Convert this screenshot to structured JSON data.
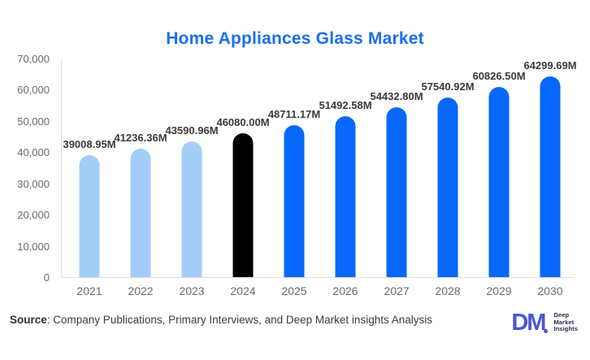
{
  "title": "Home Appliances Glass Market",
  "chart_data": {
    "type": "bar",
    "title": "Home Appliances Glass Market",
    "categories": [
      "2021",
      "2022",
      "2023",
      "2024",
      "2025",
      "2026",
      "2027",
      "2028",
      "2029",
      "2030"
    ],
    "values": [
      39008.95,
      41236.36,
      43590.96,
      46080.0,
      48711.17,
      51492.58,
      54432.8,
      57540.92,
      60826.5,
      64299.69
    ],
    "value_labels": [
      "39008.95M",
      "41236.36M",
      "43590.96M",
      "46080.00M",
      "48711.17M",
      "51492.58M",
      "54432.80M",
      "57540.92M",
      "60826.50M",
      "64299.69M"
    ],
    "bar_colors": [
      "#A4CDF8",
      "#A4CDF8",
      "#A4CDF8",
      "#000000",
      "#0768FB",
      "#0768FB",
      "#0768FB",
      "#0768FB",
      "#0768FB",
      "#0768FB"
    ],
    "xlabel": "",
    "ylabel": "",
    "ylim": [
      0,
      70000
    ],
    "y_ticks": [
      "70,000",
      "60,000",
      "50,000",
      "40,000",
      "30,000",
      "20,000",
      "10,000",
      "0"
    ],
    "grid": "off",
    "legend": "none"
  },
  "colors": {
    "title": "#1A6EF2",
    "past_bar": "#A4CDF8",
    "current_bar": "#000000",
    "forecast_bar": "#0768FB",
    "axis_line": "#DCDCDC",
    "tick_text": "#6B6B6B",
    "value_text": "#3A3A3A",
    "brand_blue": "#4A55D6",
    "brand_navy": "#23264A"
  },
  "source": {
    "label": "Source",
    "text": ": Company Publications, Primary Interviews, and Deep Market insights Analysis"
  },
  "brand": {
    "monogram": "DM",
    "lines": [
      "Deep",
      "Market",
      "Insights"
    ]
  }
}
